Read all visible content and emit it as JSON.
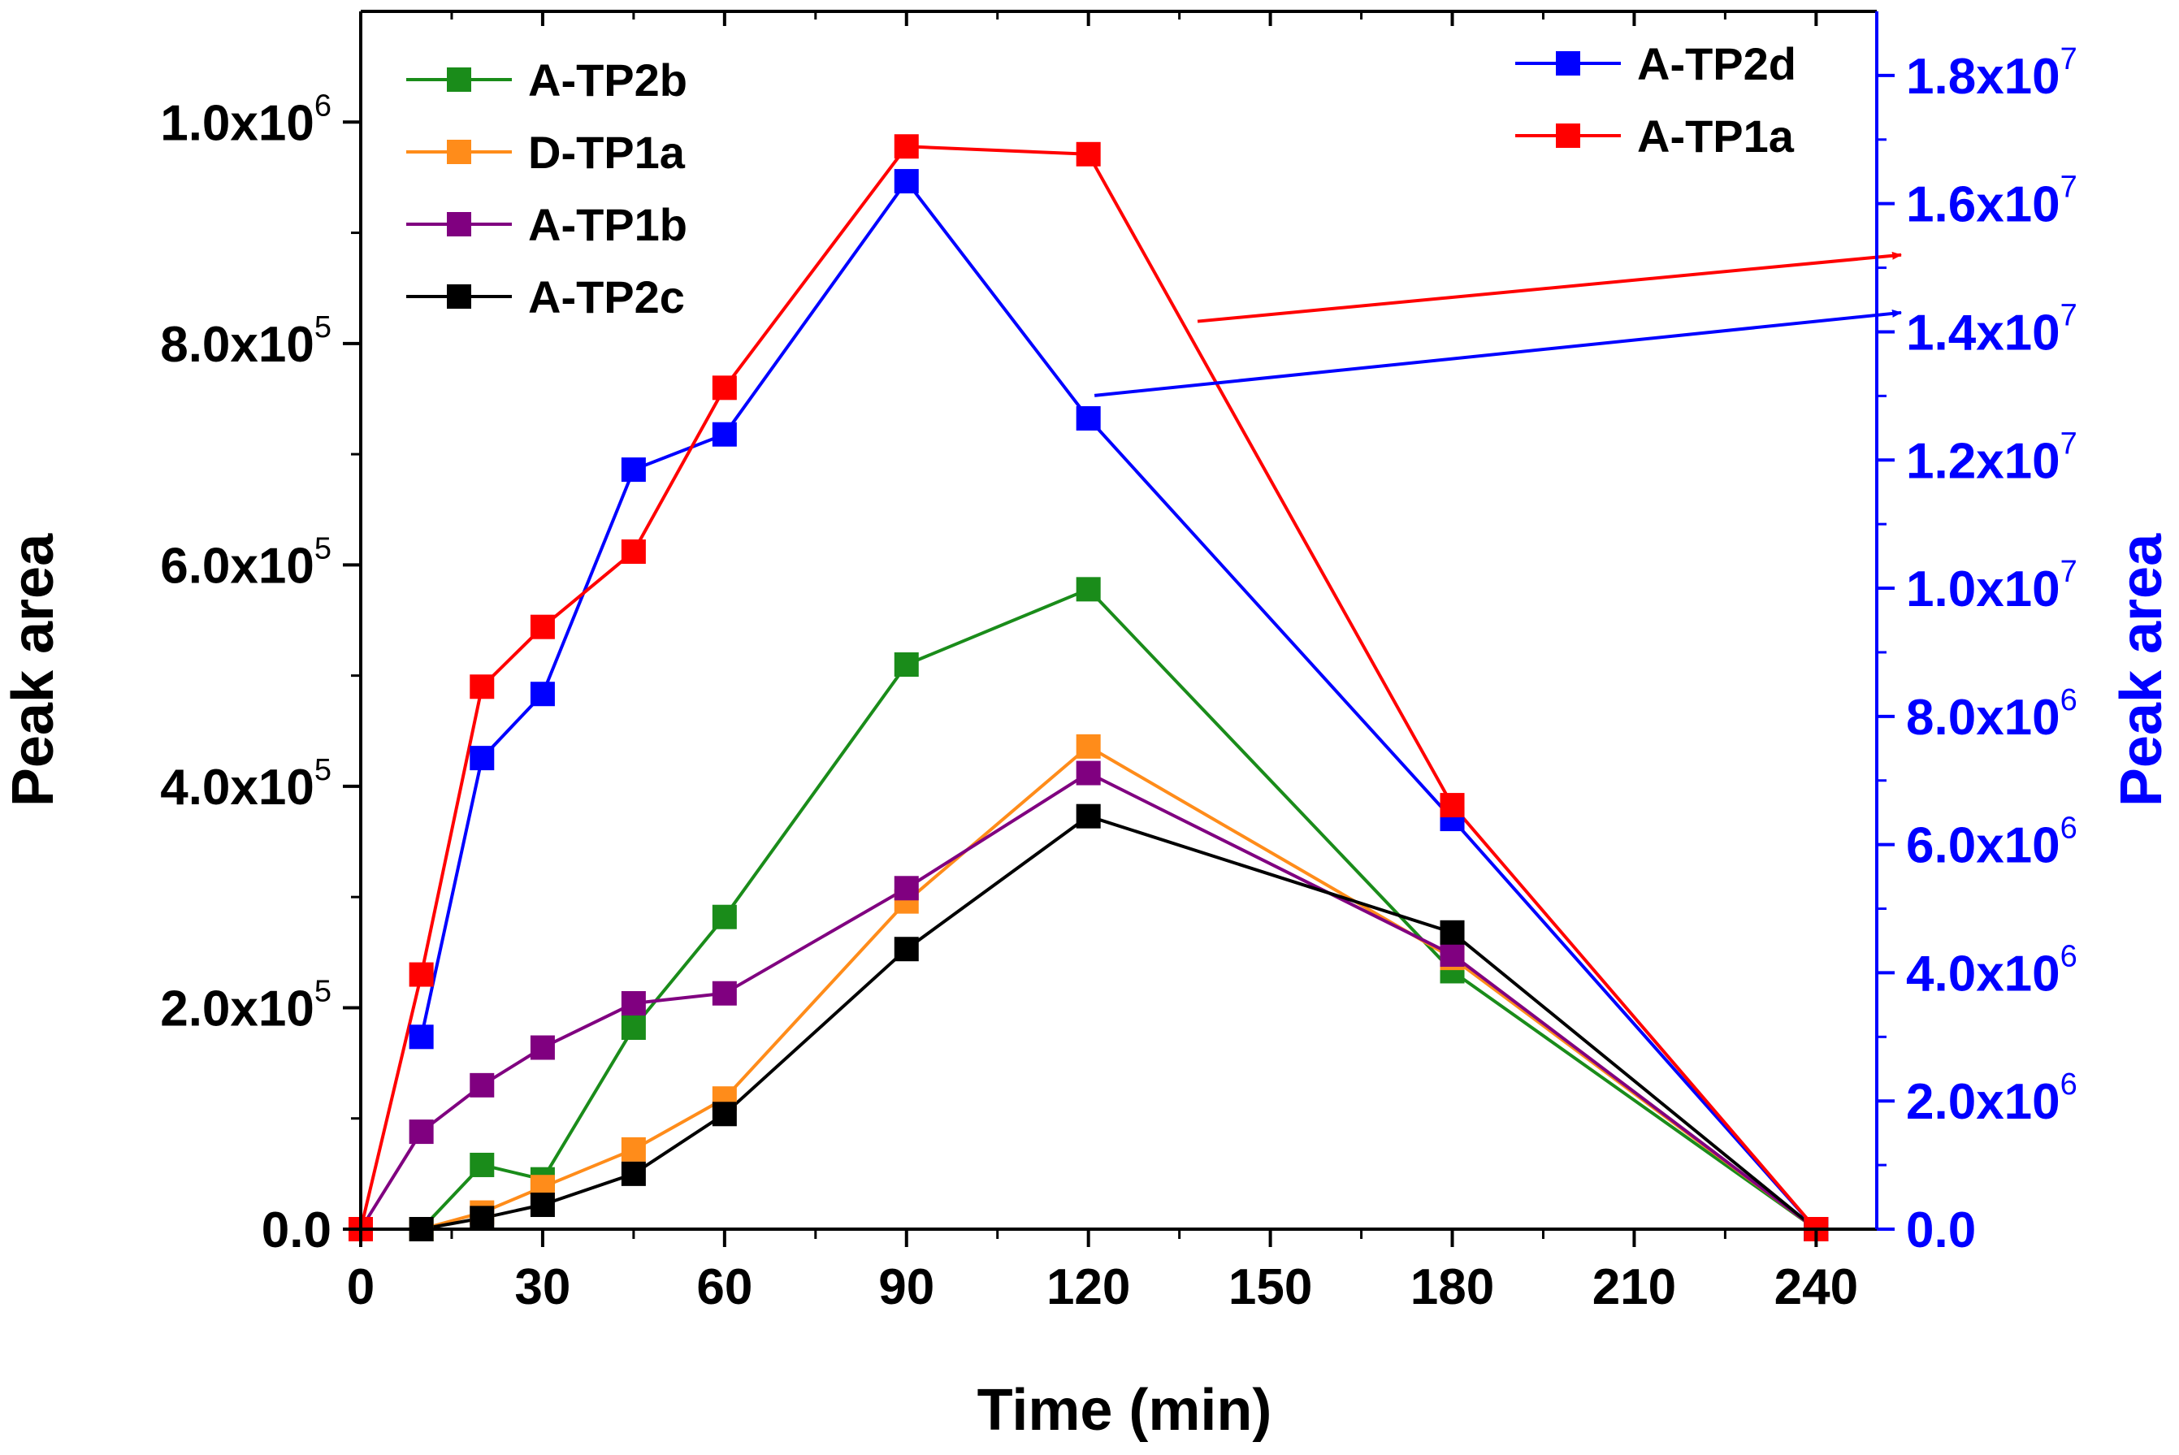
{
  "chart_data": {
    "type": "line",
    "xlabel": "Time (min)",
    "ylabel_left": "Peak area",
    "ylabel_right": "Peak area",
    "xlim": [
      0,
      250
    ],
    "ylim_left": [
      0,
      1100000
    ],
    "ylim_right": [
      0,
      19000000
    ],
    "x_ticks": [
      0,
      30,
      60,
      90,
      120,
      150,
      180,
      210,
      240
    ],
    "x_tick_labels": [
      "0",
      "30",
      "60",
      "90",
      "120",
      "150",
      "180",
      "210",
      "240"
    ],
    "y_left_ticks": [
      {
        "value": 0,
        "mantissa": "0.0",
        "exp": ""
      },
      {
        "value": 200000,
        "mantissa": "2.0x10",
        "exp": "5"
      },
      {
        "value": 400000,
        "mantissa": "4.0x10",
        "exp": "5"
      },
      {
        "value": 600000,
        "mantissa": "6.0x10",
        "exp": "5"
      },
      {
        "value": 800000,
        "mantissa": "8.0x10",
        "exp": "5"
      },
      {
        "value": 1000000,
        "mantissa": "1.0x10",
        "exp": "6"
      }
    ],
    "y_right_ticks": [
      {
        "value": 0,
        "mantissa": "0.0",
        "exp": ""
      },
      {
        "value": 2000000,
        "mantissa": "2.0x10",
        "exp": "6"
      },
      {
        "value": 4000000,
        "mantissa": "4.0x10",
        "exp": "6"
      },
      {
        "value": 6000000,
        "mantissa": "6.0x10",
        "exp": "6"
      },
      {
        "value": 8000000,
        "mantissa": "8.0x10",
        "exp": "6"
      },
      {
        "value": 10000000,
        "mantissa": "1.0x10",
        "exp": "7"
      },
      {
        "value": 12000000,
        "mantissa": "1.2x10",
        "exp": "7"
      },
      {
        "value": 14000000,
        "mantissa": "1.4x10",
        "exp": "7"
      },
      {
        "value": 16000000,
        "mantissa": "1.6x10",
        "exp": "7"
      },
      {
        "value": 18000000,
        "mantissa": "1.8x10",
        "exp": "7"
      }
    ],
    "left_axis_color": "#000000",
    "right_axis_color": "#0000ff",
    "series": [
      {
        "name": "A-TP2b",
        "color": "#1a8c1a",
        "axis": "left",
        "legend": "left",
        "x": [
          0,
          10,
          20,
          30,
          45,
          60,
          90,
          120,
          180,
          240
        ],
        "y": [
          0,
          0,
          58000,
          45000,
          182000,
          282000,
          510000,
          578000,
          233000,
          0
        ]
      },
      {
        "name": "D-TP1a",
        "color": "#ff8c1a",
        "axis": "left",
        "legend": "left",
        "x": [
          0,
          10,
          20,
          30,
          45,
          60,
          90,
          120,
          180,
          240
        ],
        "y": [
          0,
          0,
          15000,
          38000,
          72000,
          118000,
          296000,
          436000,
          245000,
          0
        ]
      },
      {
        "name": "A-TP1b",
        "color": "#800080",
        "axis": "left",
        "legend": "left",
        "x": [
          0,
          10,
          20,
          30,
          45,
          60,
          90,
          120,
          180,
          240
        ],
        "y": [
          0,
          88000,
          130000,
          164000,
          204000,
          213000,
          308000,
          412000,
          248000,
          0
        ]
      },
      {
        "name": "A-TP2c",
        "color": "#000000",
        "axis": "left",
        "legend": "left",
        "x": [
          0,
          10,
          20,
          30,
          45,
          60,
          90,
          120,
          180,
          240
        ],
        "y": [
          0,
          0,
          10000,
          22000,
          50000,
          104000,
          253000,
          373000,
          268000,
          0
        ]
      },
      {
        "name": "A-TP2d",
        "color": "#0000ff",
        "axis": "right",
        "legend": "right",
        "x": [
          10,
          20,
          30,
          45,
          60,
          90,
          120,
          180,
          240
        ],
        "y": [
          3000000,
          7350000,
          8350000,
          11850000,
          12400000,
          16350000,
          12650000,
          6400000,
          0
        ]
      },
      {
        "name": "A-TP1a",
        "color": "#ff0000",
        "axis": "left",
        "legend": "right",
        "x": [
          0,
          10,
          20,
          30,
          45,
          60,
          90,
          120,
          180,
          240
        ],
        "y": [
          0,
          230000,
          490000,
          544000,
          612000,
          760000,
          978000,
          971000,
          383000,
          0
        ]
      }
    ],
    "annotations": [
      {
        "type": "arrow",
        "color": "#ff0000",
        "from": [
          138,
          820000
        ],
        "to_axis": "right",
        "to_value": 15200000
      },
      {
        "type": "arrow",
        "color": "#0000ff",
        "from": [
          121,
          753000
        ],
        "to_axis": "right",
        "to_value": 14300000
      }
    ]
  }
}
